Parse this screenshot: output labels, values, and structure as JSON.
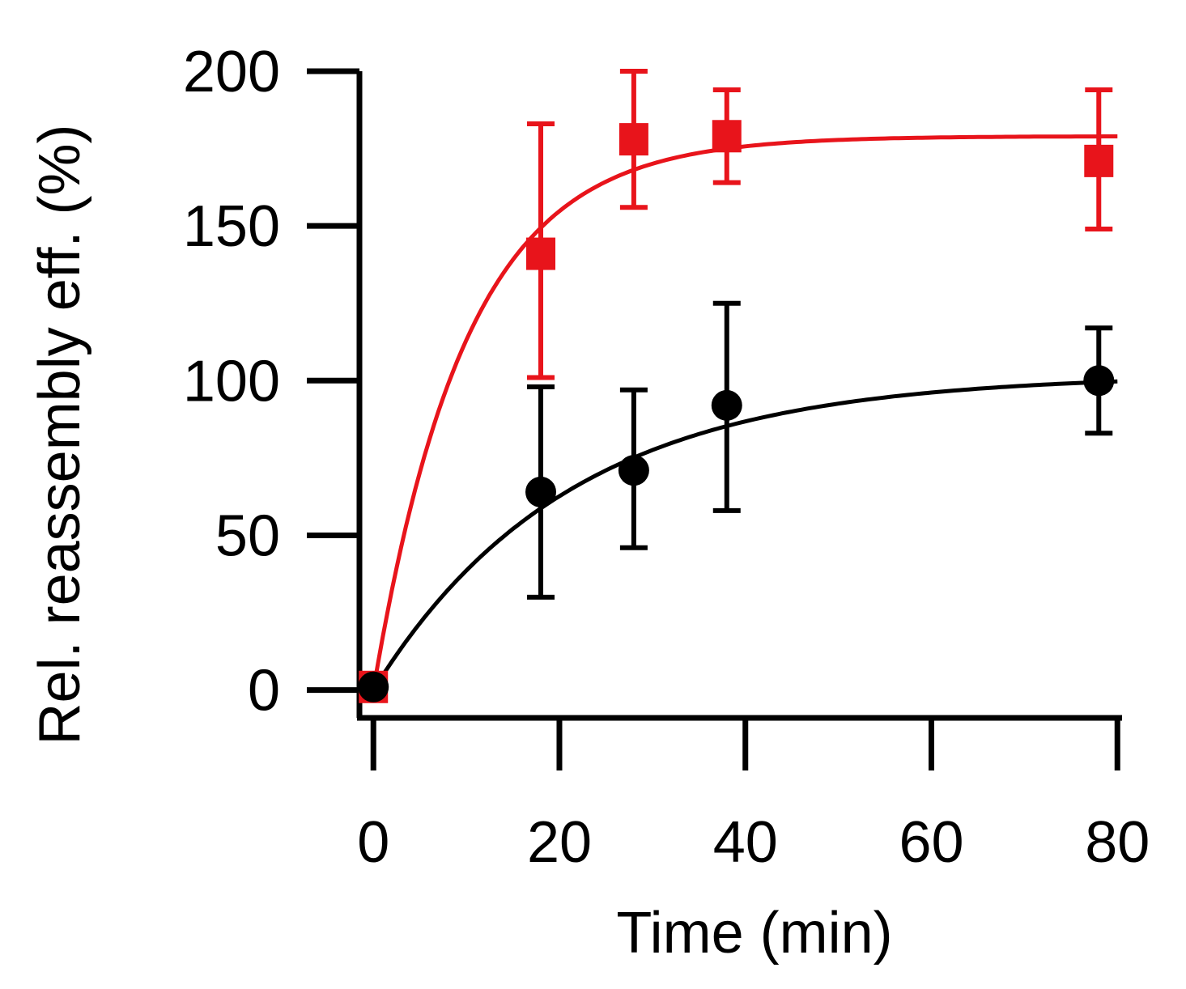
{
  "chart_data": {
    "type": "scatter",
    "title": "",
    "xlabel": "Time (min)",
    "ylabel": "Rel. reassembly eff. (%)",
    "xlim": [
      -1.5,
      80.5
    ],
    "ylim": [
      -9,
      200
    ],
    "xticks": [
      0,
      20,
      40,
      60,
      80
    ],
    "xtick_labels": [
      "0",
      "20",
      "40",
      "60",
      "80"
    ],
    "yticks": [
      0,
      50,
      100,
      150,
      200
    ],
    "ytick_labels": [
      "0",
      "50",
      "100",
      "150",
      "200"
    ],
    "grid": false,
    "legend": "none",
    "series": [
      {
        "name": "red",
        "color": "#e8141b",
        "marker": "square",
        "x": [
          0,
          18,
          28,
          38,
          78
        ],
        "y": [
          1,
          141,
          178,
          179,
          171
        ],
        "err_low": [
          1,
          101,
          156,
          164,
          149
        ],
        "err_high": [
          1,
          183,
          200,
          194,
          194
        ],
        "fit": {
          "model": "ymax*(1-exp(-t/tau))",
          "ymax": 179,
          "tau": 10
        }
      },
      {
        "name": "black",
        "color": "#000000",
        "marker": "circle",
        "x": [
          0,
          18,
          28,
          38,
          78
        ],
        "y": [
          1,
          64,
          71,
          92,
          100
        ],
        "err_low": [
          1,
          30,
          46,
          58,
          83
        ],
        "err_high": [
          1,
          98,
          97,
          125,
          117
        ],
        "fit": {
          "model": "ymax*(1-exp(-t/tau))",
          "ymax": 102,
          "tau": 21
        }
      }
    ]
  }
}
